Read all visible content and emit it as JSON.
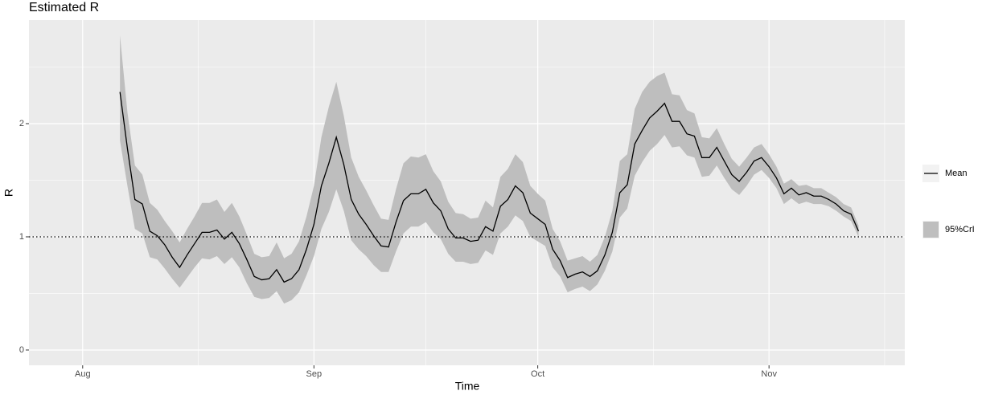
{
  "chart_data": {
    "type": "line",
    "title": "Estimated R",
    "xlabel": "Time",
    "ylabel": "R",
    "x": [
      5,
      6,
      7,
      8,
      9,
      10,
      11,
      12,
      13,
      14,
      15,
      16,
      17,
      18,
      19,
      20,
      21,
      22,
      23,
      24,
      25,
      26,
      27,
      28,
      29,
      30,
      31,
      32,
      33,
      34,
      35,
      36,
      37,
      38,
      39,
      40,
      41,
      42,
      43,
      44,
      45,
      46,
      47,
      48,
      49,
      50,
      51,
      52,
      53,
      54,
      55,
      56,
      57,
      58,
      59,
      60,
      61,
      62,
      63,
      64,
      65,
      66,
      67,
      68,
      69,
      70,
      71,
      72,
      73,
      74,
      75,
      76,
      77,
      78,
      79,
      80,
      81,
      82,
      83,
      84,
      85,
      86,
      87,
      88,
      89,
      90,
      91,
      92,
      93,
      94,
      95,
      96,
      97,
      98,
      99,
      100,
      101,
      102,
      103,
      104
    ],
    "series": [
      {
        "name": "Mean",
        "color": "#000000",
        "values": [
          2.28,
          1.78,
          1.33,
          1.29,
          1.05,
          1.01,
          0.93,
          0.82,
          0.73,
          0.84,
          0.94,
          1.04,
          1.04,
          1.06,
          0.98,
          1.04,
          0.94,
          0.8,
          0.65,
          0.62,
          0.63,
          0.71,
          0.6,
          0.63,
          0.71,
          0.89,
          1.11,
          1.45,
          1.65,
          1.88,
          1.64,
          1.33,
          1.2,
          1.11,
          1.01,
          0.92,
          0.91,
          1.13,
          1.32,
          1.38,
          1.38,
          1.42,
          1.3,
          1.23,
          1.07,
          0.99,
          0.99,
          0.96,
          0.97,
          1.09,
          1.05,
          1.27,
          1.33,
          1.45,
          1.39,
          1.21,
          1.16,
          1.11,
          0.89,
          0.79,
          0.64,
          0.67,
          0.69,
          0.65,
          0.7,
          0.84,
          1.04,
          1.39,
          1.46,
          1.82,
          1.94,
          2.05,
          2.11,
          2.18,
          2.02,
          2.02,
          1.91,
          1.89,
          1.7,
          1.7,
          1.79,
          1.67,
          1.55,
          1.49,
          1.57,
          1.67,
          1.7,
          1.62,
          1.52,
          1.38,
          1.43,
          1.37,
          1.39,
          1.36,
          1.36,
          1.33,
          1.29,
          1.23,
          1.2,
          1.05
        ]
      }
    ],
    "band": {
      "name": "95%CrI",
      "color": "#bebebe",
      "upper": [
        2.78,
        2.1,
        1.63,
        1.55,
        1.3,
        1.24,
        1.14,
        1.05,
        0.95,
        1.07,
        1.18,
        1.3,
        1.3,
        1.33,
        1.22,
        1.3,
        1.18,
        1.02,
        0.85,
        0.82,
        0.83,
        0.95,
        0.81,
        0.85,
        0.96,
        1.18,
        1.45,
        1.88,
        2.15,
        2.37,
        2.07,
        1.7,
        1.53,
        1.41,
        1.28,
        1.16,
        1.15,
        1.42,
        1.65,
        1.71,
        1.7,
        1.73,
        1.58,
        1.49,
        1.31,
        1.21,
        1.2,
        1.16,
        1.17,
        1.32,
        1.26,
        1.53,
        1.6,
        1.73,
        1.66,
        1.45,
        1.38,
        1.32,
        1.07,
        0.96,
        0.79,
        0.81,
        0.83,
        0.78,
        0.84,
        1.0,
        1.23,
        1.67,
        1.73,
        2.13,
        2.28,
        2.37,
        2.42,
        2.45,
        2.26,
        2.25,
        2.12,
        2.09,
        1.88,
        1.87,
        1.96,
        1.82,
        1.69,
        1.62,
        1.7,
        1.79,
        1.82,
        1.73,
        1.62,
        1.47,
        1.51,
        1.45,
        1.46,
        1.43,
        1.43,
        1.39,
        1.35,
        1.29,
        1.26,
        1.1
      ],
      "lower": [
        1.85,
        1.45,
        1.07,
        1.03,
        0.82,
        0.8,
        0.72,
        0.63,
        0.55,
        0.64,
        0.73,
        0.81,
        0.8,
        0.83,
        0.76,
        0.82,
        0.73,
        0.59,
        0.47,
        0.45,
        0.46,
        0.52,
        0.41,
        0.44,
        0.51,
        0.66,
        0.83,
        1.07,
        1.22,
        1.42,
        1.23,
        0.97,
        0.89,
        0.83,
        0.75,
        0.69,
        0.69,
        0.87,
        1.03,
        1.09,
        1.09,
        1.13,
        1.04,
        0.98,
        0.85,
        0.78,
        0.78,
        0.76,
        0.77,
        0.88,
        0.84,
        1.03,
        1.09,
        1.19,
        1.14,
        1.0,
        0.96,
        0.92,
        0.73,
        0.65,
        0.51,
        0.54,
        0.56,
        0.52,
        0.58,
        0.7,
        0.87,
        1.17,
        1.25,
        1.54,
        1.66,
        1.76,
        1.82,
        1.9,
        1.79,
        1.8,
        1.72,
        1.7,
        1.53,
        1.54,
        1.63,
        1.52,
        1.42,
        1.37,
        1.45,
        1.55,
        1.59,
        1.52,
        1.43,
        1.29,
        1.34,
        1.29,
        1.31,
        1.29,
        1.29,
        1.27,
        1.23,
        1.18,
        1.14,
        1.0
      ]
    },
    "reference_line": 1,
    "xlim": [
      -7.2,
      110.2
    ],
    "xticks": [
      {
        "value": 0,
        "label": "Aug"
      },
      {
        "value": 31,
        "label": "Sep"
      },
      {
        "value": 61,
        "label": "Oct"
      },
      {
        "value": 92,
        "label": "Nov"
      }
    ],
    "ylim": [
      -0.135,
      2.915
    ],
    "yticks": [
      0,
      1,
      2
    ],
    "grid": true,
    "legend": "right"
  }
}
